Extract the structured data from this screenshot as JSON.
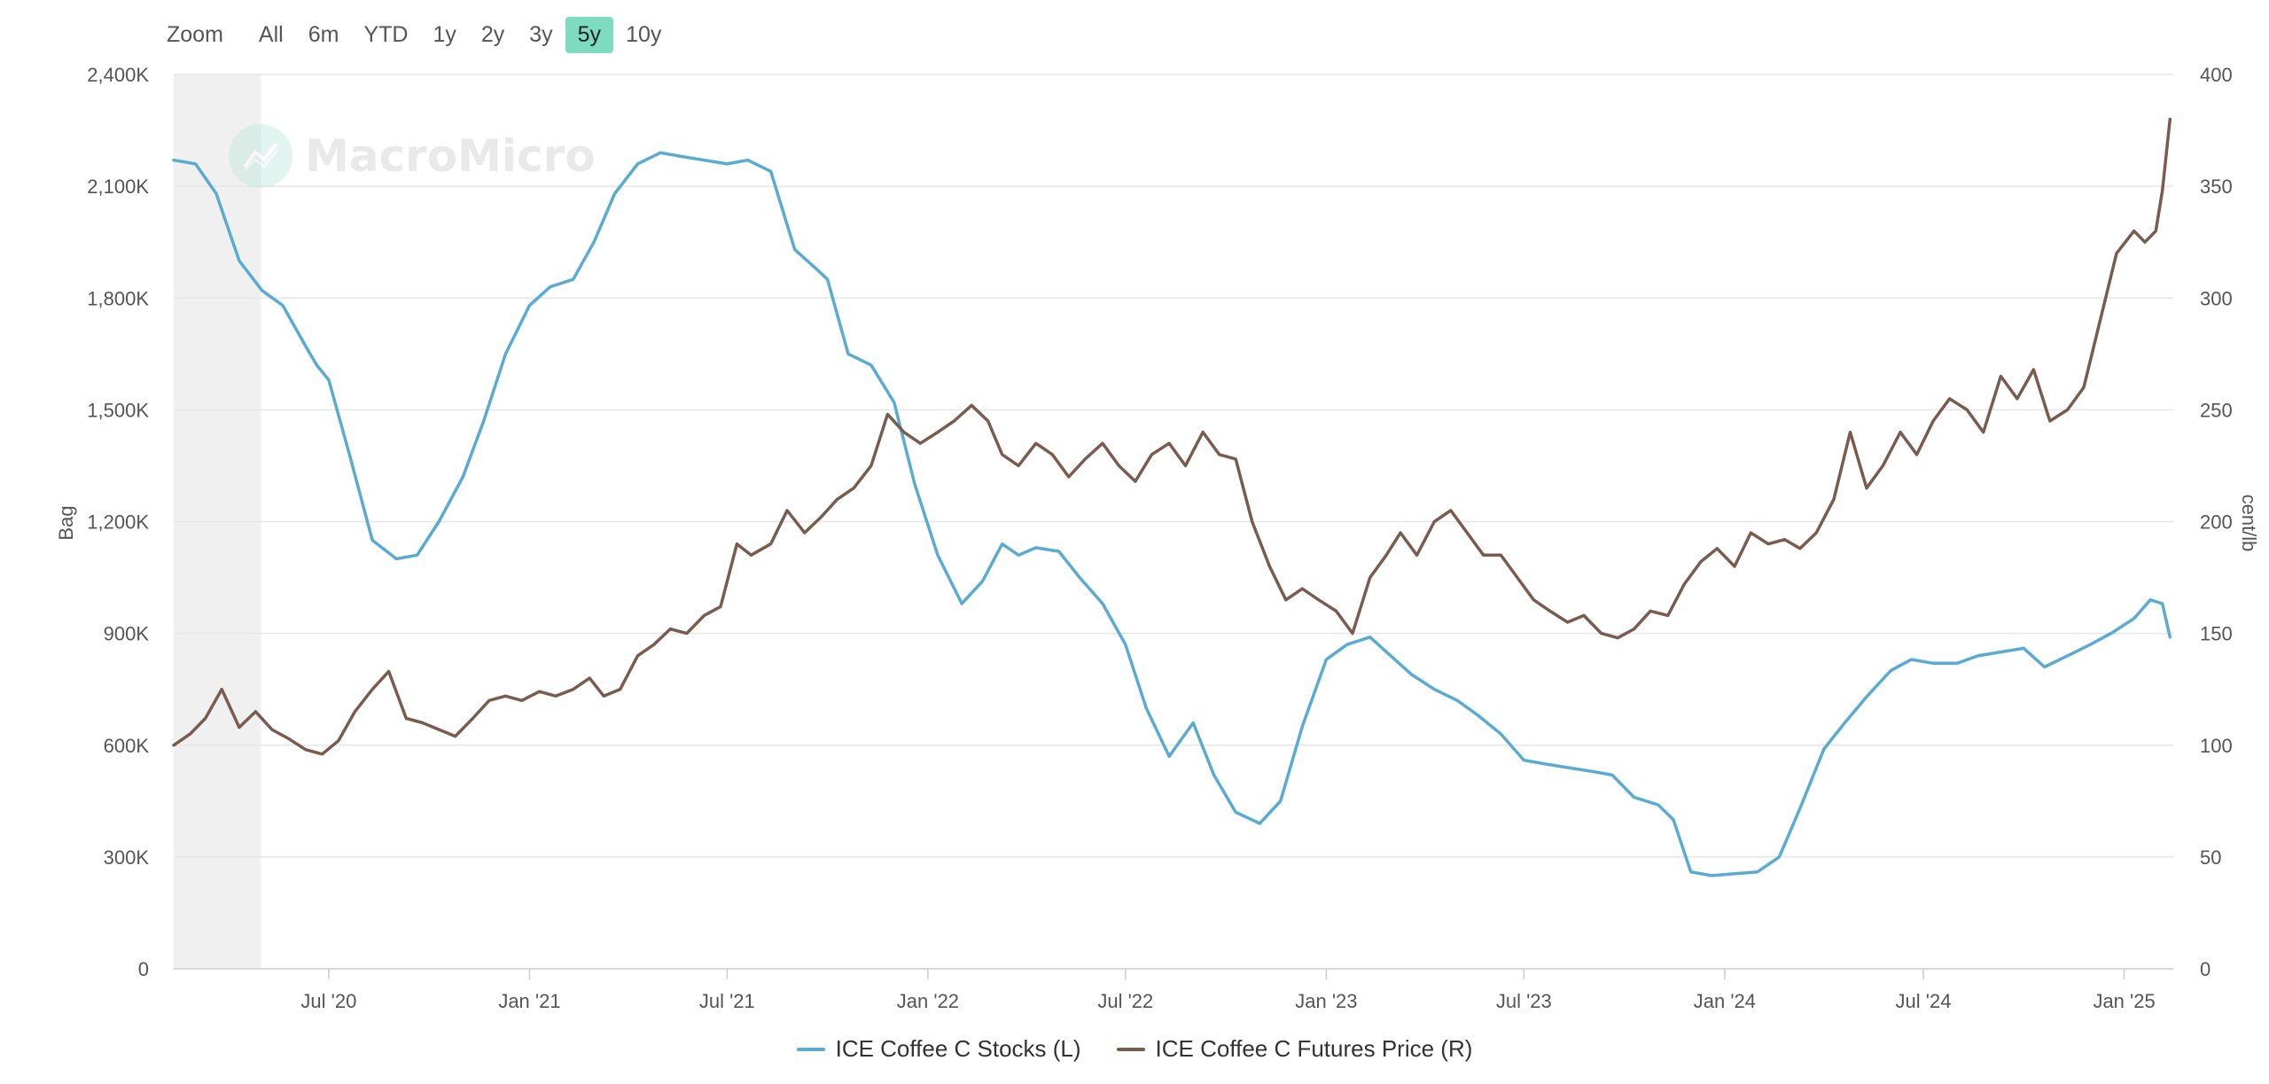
{
  "zoom": {
    "label": "Zoom",
    "buttons": [
      "All",
      "6m",
      "YTD",
      "1y",
      "2y",
      "3y",
      "5y",
      "10y"
    ],
    "active": "5y",
    "active_color": "#7ddcc0"
  },
  "watermark": {
    "text": "MacroMicro"
  },
  "legend": [
    {
      "label": "ICE Coffee C Stocks (L)",
      "color": "#5aabd2"
    },
    {
      "label": "ICE Coffee C Futures Price (R)",
      "color": "#7a5c4e"
    }
  ],
  "chart_data": {
    "type": "line",
    "title": "",
    "xlabel": "",
    "ylabel_left": "Bag",
    "ylabel_right": "cent/lb",
    "grid": true,
    "legend_position": "bottom-center",
    "xlim": [
      "2020-02-10",
      "2025-02-15"
    ],
    "ylim_left": [
      0,
      2400000
    ],
    "ylim_right": [
      0,
      400
    ],
    "left_ticks": [
      {
        "value": 0,
        "label": "0"
      },
      {
        "value": 300000,
        "label": "300K"
      },
      {
        "value": 600000,
        "label": "600K"
      },
      {
        "value": 900000,
        "label": "900K"
      },
      {
        "value": 1200000,
        "label": "1,200K"
      },
      {
        "value": 1500000,
        "label": "1,500K"
      },
      {
        "value": 1800000,
        "label": "1,800K"
      },
      {
        "value": 2100000,
        "label": "2,100K"
      },
      {
        "value": 2400000,
        "label": "2,400K"
      }
    ],
    "right_ticks": [
      {
        "value": 0,
        "label": "0"
      },
      {
        "value": 50,
        "label": "50"
      },
      {
        "value": 100,
        "label": "100"
      },
      {
        "value": 150,
        "label": "150"
      },
      {
        "value": 200,
        "label": "200"
      },
      {
        "value": 250,
        "label": "250"
      },
      {
        "value": 300,
        "label": "300"
      },
      {
        "value": 350,
        "label": "350"
      },
      {
        "value": 400,
        "label": "400"
      }
    ],
    "x_ticks": [
      {
        "date": "2020-07-01",
        "label": "Jul '20"
      },
      {
        "date": "2021-01-01",
        "label": "Jan '21"
      },
      {
        "date": "2021-07-01",
        "label": "Jul '21"
      },
      {
        "date": "2022-01-01",
        "label": "Jan '22"
      },
      {
        "date": "2022-07-01",
        "label": "Jul '22"
      },
      {
        "date": "2023-01-01",
        "label": "Jan '23"
      },
      {
        "date": "2023-07-01",
        "label": "Jul '23"
      },
      {
        "date": "2024-01-01",
        "label": "Jan '24"
      },
      {
        "date": "2024-07-01",
        "label": "Jul '24"
      },
      {
        "date": "2025-01-01",
        "label": "Jan '25"
      }
    ],
    "shaded_band": {
      "from": "2020-02-10",
      "to": "2020-04-30",
      "color": "#f0f0f0"
    },
    "series": [
      {
        "name": "ICE Coffee C Stocks (L)",
        "axis": "left",
        "color": "#5aabd2",
        "x": [
          "2020-02-10",
          "2020-03-01",
          "2020-03-20",
          "2020-04-10",
          "2020-05-01",
          "2020-05-20",
          "2020-06-10",
          "2020-06-20",
          "2020-07-01",
          "2020-07-20",
          "2020-08-10",
          "2020-09-01",
          "2020-09-20",
          "2020-10-10",
          "2020-11-01",
          "2020-11-20",
          "2020-12-10",
          "2021-01-01",
          "2021-01-20",
          "2021-02-10",
          "2021-03-01",
          "2021-03-20",
          "2021-04-10",
          "2021-05-01",
          "2021-05-20",
          "2021-06-10",
          "2021-07-01",
          "2021-07-20",
          "2021-08-10",
          "2021-09-01",
          "2021-09-20",
          "2021-10-01",
          "2021-10-20",
          "2021-11-10",
          "2021-12-01",
          "2021-12-20",
          "2022-01-10",
          "2022-02-01",
          "2022-02-20",
          "2022-03-10",
          "2022-03-25",
          "2022-04-10",
          "2022-05-01",
          "2022-05-20",
          "2022-06-10",
          "2022-07-01",
          "2022-07-20",
          "2022-08-10",
          "2022-09-01",
          "2022-09-20",
          "2022-10-10",
          "2022-11-01",
          "2022-11-20",
          "2022-12-10",
          "2023-01-01",
          "2023-01-20",
          "2023-02-10",
          "2023-03-01",
          "2023-03-20",
          "2023-04-10",
          "2023-05-01",
          "2023-05-20",
          "2023-06-10",
          "2023-07-01",
          "2023-07-20",
          "2023-08-10",
          "2023-09-01",
          "2023-09-20",
          "2023-10-10",
          "2023-11-01",
          "2023-11-15",
          "2023-12-01",
          "2023-12-20",
          "2024-01-10",
          "2024-01-31",
          "2024-02-20",
          "2024-03-10",
          "2024-04-01",
          "2024-04-20",
          "2024-05-10",
          "2024-06-01",
          "2024-06-20",
          "2024-07-10",
          "2024-08-01",
          "2024-08-20",
          "2024-09-10",
          "2024-10-01",
          "2024-10-20",
          "2024-11-10",
          "2024-12-01",
          "2024-12-20",
          "2025-01-10",
          "2025-01-25",
          "2025-02-05",
          "2025-02-12"
        ],
        "values": [
          2170000,
          2160000,
          2080000,
          1900000,
          1820000,
          1780000,
          1670000,
          1620000,
          1580000,
          1380000,
          1150000,
          1100000,
          1110000,
          1200000,
          1320000,
          1470000,
          1650000,
          1780000,
          1830000,
          1850000,
          1950000,
          2080000,
          2160000,
          2190000,
          2180000,
          2170000,
          2160000,
          2170000,
          2140000,
          1930000,
          1880000,
          1850000,
          1650000,
          1620000,
          1520000,
          1300000,
          1110000,
          980000,
          1040000,
          1140000,
          1110000,
          1130000,
          1120000,
          1050000,
          980000,
          870000,
          700000,
          570000,
          660000,
          520000,
          420000,
          390000,
          450000,
          650000,
          830000,
          870000,
          890000,
          840000,
          790000,
          750000,
          720000,
          680000,
          630000,
          560000,
          550000,
          540000,
          530000,
          520000,
          460000,
          440000,
          400000,
          260000,
          250000,
          255000,
          260000,
          300000,
          430000,
          590000,
          660000,
          730000,
          800000,
          830000,
          820000,
          820000,
          840000,
          850000,
          860000,
          810000,
          840000,
          870000,
          900000,
          940000,
          990000,
          980000,
          890000
        ]
      },
      {
        "name": "ICE Coffee C Futures Price (R)",
        "axis": "right",
        "color": "#7a5c4e",
        "x": [
          "2020-02-10",
          "2020-02-25",
          "2020-03-10",
          "2020-03-25",
          "2020-04-10",
          "2020-04-25",
          "2020-05-10",
          "2020-05-25",
          "2020-06-10",
          "2020-06-25",
          "2020-07-10",
          "2020-07-25",
          "2020-08-10",
          "2020-08-25",
          "2020-09-10",
          "2020-09-25",
          "2020-10-10",
          "2020-10-25",
          "2020-11-10",
          "2020-11-25",
          "2020-12-10",
          "2020-12-25",
          "2021-01-10",
          "2021-01-25",
          "2021-02-10",
          "2021-02-25",
          "2021-03-10",
          "2021-03-25",
          "2021-04-10",
          "2021-04-25",
          "2021-05-10",
          "2021-05-25",
          "2021-06-10",
          "2021-06-25",
          "2021-07-10",
          "2021-07-23",
          "2021-08-10",
          "2021-08-25",
          "2021-09-10",
          "2021-09-25",
          "2021-10-10",
          "2021-10-25",
          "2021-11-10",
          "2021-11-25",
          "2021-12-10",
          "2021-12-25",
          "2022-01-10",
          "2022-01-25",
          "2022-02-10",
          "2022-02-25",
          "2022-03-10",
          "2022-03-25",
          "2022-04-10",
          "2022-04-25",
          "2022-05-10",
          "2022-05-25",
          "2022-06-10",
          "2022-06-25",
          "2022-07-10",
          "2022-07-25",
          "2022-08-10",
          "2022-08-25",
          "2022-09-10",
          "2022-09-25",
          "2022-10-10",
          "2022-10-25",
          "2022-11-10",
          "2022-11-25",
          "2022-12-10",
          "2022-12-25",
          "2023-01-10",
          "2023-01-25",
          "2023-02-10",
          "2023-02-25",
          "2023-03-10",
          "2023-03-25",
          "2023-04-10",
          "2023-04-25",
          "2023-05-10",
          "2023-05-25",
          "2023-06-10",
          "2023-06-25",
          "2023-07-10",
          "2023-07-25",
          "2023-08-10",
          "2023-08-25",
          "2023-09-10",
          "2023-09-25",
          "2023-10-10",
          "2023-10-25",
          "2023-11-10",
          "2023-11-25",
          "2023-12-10",
          "2023-12-25",
          "2024-01-10",
          "2024-01-25",
          "2024-02-10",
          "2024-02-25",
          "2024-03-10",
          "2024-03-25",
          "2024-04-10",
          "2024-04-25",
          "2024-05-10",
          "2024-05-25",
          "2024-06-10",
          "2024-06-25",
          "2024-07-10",
          "2024-07-25",
          "2024-08-10",
          "2024-08-25",
          "2024-09-10",
          "2024-09-25",
          "2024-10-10",
          "2024-10-25",
          "2024-11-10",
          "2024-11-25",
          "2024-12-10",
          "2024-12-25",
          "2025-01-10",
          "2025-01-20",
          "2025-01-30",
          "2025-02-05",
          "2025-02-12"
        ],
        "values": [
          100,
          105,
          112,
          125,
          108,
          115,
          107,
          103,
          98,
          96,
          102,
          115,
          125,
          133,
          112,
          110,
          107,
          104,
          112,
          120,
          122,
          120,
          124,
          122,
          125,
          130,
          122,
          125,
          140,
          145,
          152,
          150,
          158,
          162,
          190,
          185,
          190,
          205,
          195,
          202,
          210,
          215,
          225,
          248,
          240,
          235,
          240,
          245,
          252,
          245,
          230,
          225,
          235,
          230,
          220,
          228,
          235,
          225,
          218,
          230,
          235,
          225,
          240,
          230,
          228,
          200,
          180,
          165,
          170,
          165,
          160,
          150,
          175,
          185,
          195,
          185,
          200,
          205,
          195,
          185,
          185,
          175,
          165,
          160,
          155,
          158,
          150,
          148,
          152,
          160,
          158,
          172,
          182,
          188,
          180,
          195,
          190,
          192,
          188,
          195,
          210,
          240,
          215,
          225,
          240,
          230,
          245,
          255,
          250,
          240,
          265,
          255,
          268,
          245,
          250,
          260,
          290,
          320,
          330,
          325,
          330,
          348,
          380
        ]
      }
    ]
  }
}
